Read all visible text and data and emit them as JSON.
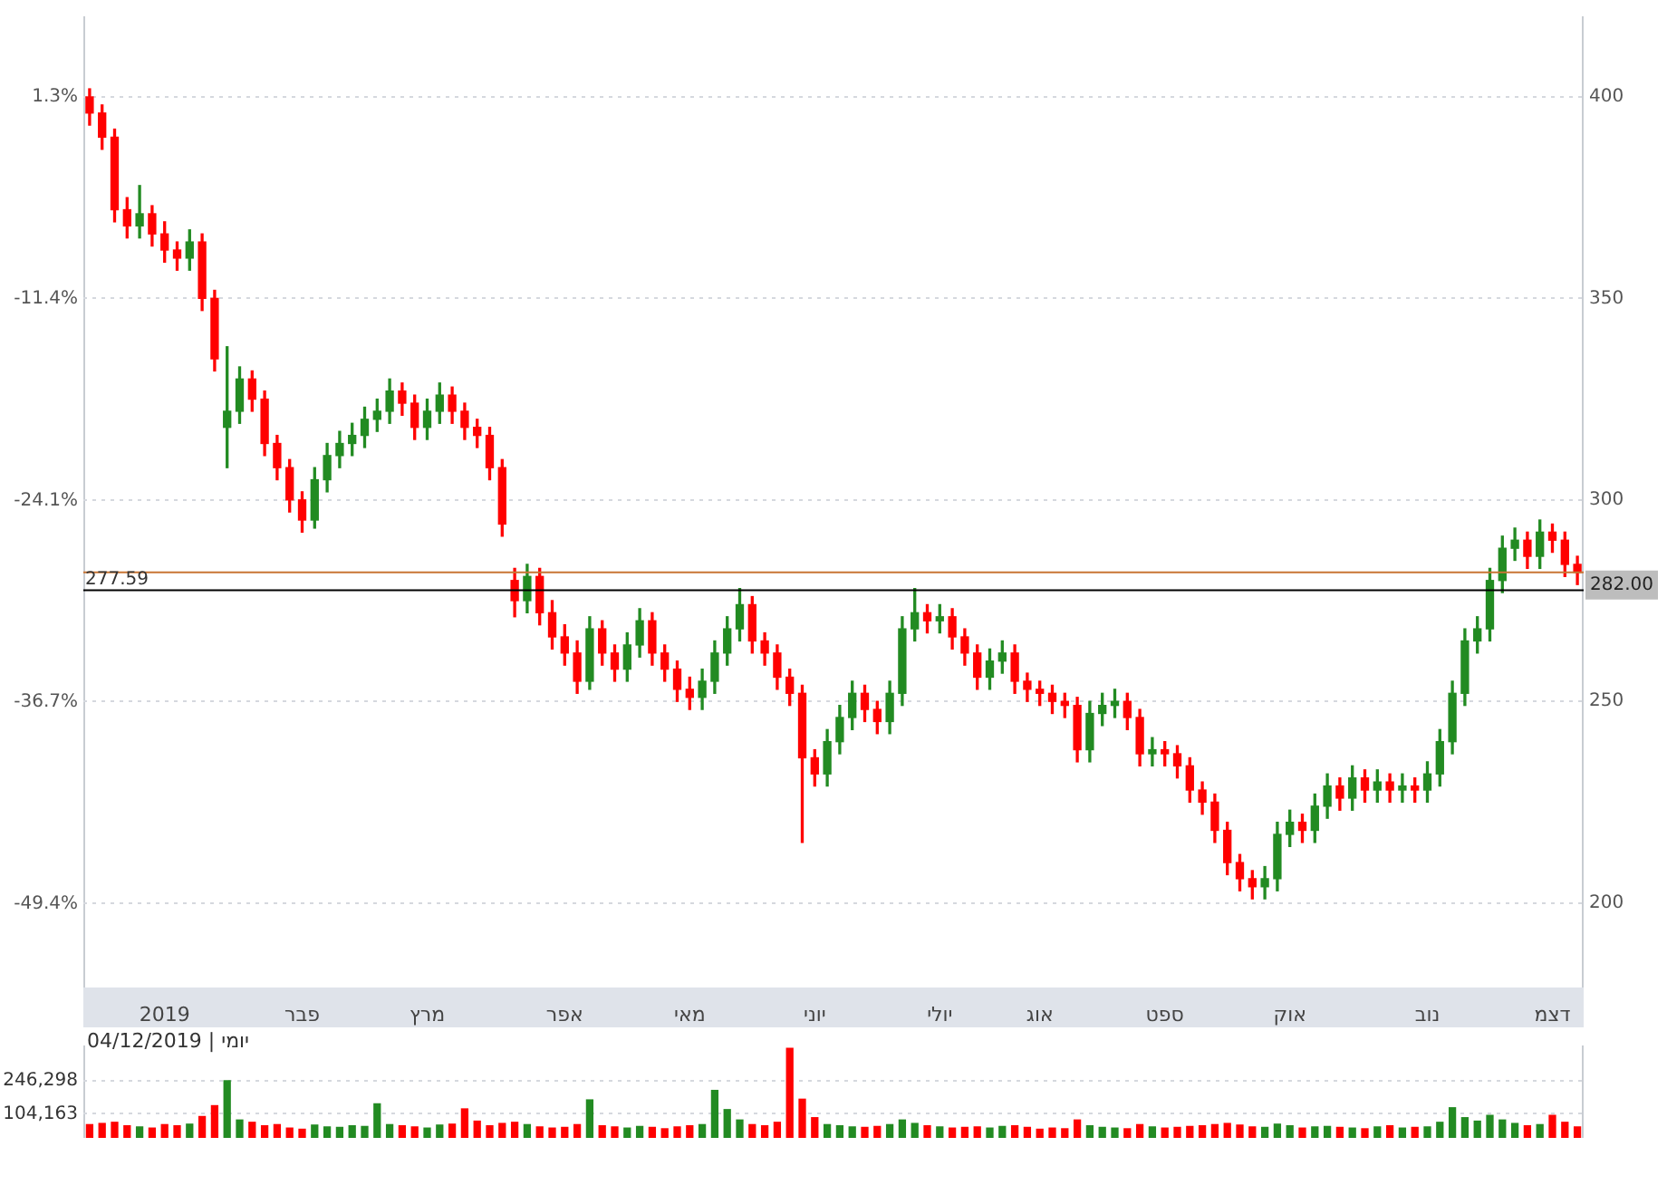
{
  "chart_data": [
    {
      "type": "candlestick",
      "categories": [
        null,
        null,
        null,
        null,
        null,
        null,
        "2019",
        null,
        null,
        null,
        null,
        null,
        null,
        null,
        null,
        null,
        null,
        "פבר",
        null,
        null,
        null,
        null,
        null,
        null,
        null,
        null,
        null,
        "מרץ",
        null,
        null,
        null,
        null,
        null,
        null,
        null,
        null,
        null,
        null,
        "אפר",
        null,
        null,
        null,
        null,
        null,
        null,
        null,
        null,
        null,
        "מאי",
        null,
        null,
        null,
        null,
        null,
        null,
        null,
        null,
        null,
        "יוני",
        null,
        null,
        null,
        null,
        null,
        null,
        null,
        null,
        null,
        "יולי",
        null,
        null,
        null,
        null,
        null,
        null,
        null,
        "אוג",
        null,
        null,
        null,
        null,
        null,
        null,
        null,
        null,
        null,
        "ספט",
        null,
        null,
        null,
        null,
        null,
        null,
        null,
        null,
        null,
        "אוק",
        null,
        null,
        null,
        null,
        null,
        null,
        null,
        null,
        null,
        null,
        "נוב",
        null,
        null,
        null,
        null,
        null,
        null,
        null,
        null,
        null,
        "דצמ",
        null,
        null
      ],
      "ohlc": [
        [
          400,
          402,
          393,
          396
        ],
        [
          396,
          398,
          387,
          390
        ],
        [
          390,
          392,
          369,
          372
        ],
        [
          372,
          375,
          365,
          368
        ],
        [
          368,
          378,
          365,
          371
        ],
        [
          371,
          373,
          363,
          366
        ],
        [
          366,
          369,
          359,
          362
        ],
        [
          362,
          364,
          357,
          360
        ],
        [
          360,
          367,
          357,
          364
        ],
        [
          364,
          366,
          347,
          350
        ],
        [
          350,
          352,
          332,
          335
        ],
        [
          318,
          338,
          308,
          322
        ],
        [
          322,
          333,
          319,
          330
        ],
        [
          330,
          332,
          322,
          325
        ],
        [
          325,
          327,
          311,
          314
        ],
        [
          314,
          316,
          305,
          308
        ],
        [
          308,
          310,
          297,
          300
        ],
        [
          300,
          302,
          292,
          295
        ],
        [
          295,
          308,
          293,
          305
        ],
        [
          305,
          314,
          302,
          311
        ],
        [
          311,
          317,
          308,
          314
        ],
        [
          314,
          319,
          311,
          316
        ],
        [
          316,
          323,
          313,
          320
        ],
        [
          320,
          325,
          317,
          322
        ],
        [
          322,
          330,
          319,
          327
        ],
        [
          327,
          329,
          321,
          324
        ],
        [
          324,
          326,
          315,
          318
        ],
        [
          318,
          325,
          315,
          322
        ],
        [
          322,
          329,
          319,
          326
        ],
        [
          326,
          328,
          319,
          322
        ],
        [
          322,
          324,
          315,
          318
        ],
        [
          318,
          320,
          313,
          316
        ],
        [
          316,
          318,
          305,
          308
        ],
        [
          308,
          310,
          291,
          294
        ],
        [
          280,
          283,
          271,
          275
        ],
        [
          275,
          284,
          272,
          281
        ],
        [
          281,
          283,
          269,
          272
        ],
        [
          272,
          275,
          263,
          266
        ],
        [
          266,
          269,
          259,
          262
        ],
        [
          262,
          265,
          252,
          255
        ],
        [
          255,
          271,
          253,
          268
        ],
        [
          268,
          270,
          259,
          262
        ],
        [
          262,
          264,
          255,
          258
        ],
        [
          258,
          267,
          255,
          264
        ],
        [
          264,
          273,
          261,
          270
        ],
        [
          270,
          272,
          259,
          262
        ],
        [
          262,
          264,
          255,
          258
        ],
        [
          258,
          260,
          250,
          253
        ],
        [
          253,
          256,
          248,
          251
        ],
        [
          251,
          258,
          248,
          255
        ],
        [
          255,
          265,
          252,
          262
        ],
        [
          262,
          271,
          259,
          268
        ],
        [
          268,
          278,
          265,
          274
        ],
        [
          274,
          276,
          262,
          265
        ],
        [
          265,
          267,
          259,
          262
        ],
        [
          262,
          264,
          253,
          256
        ],
        [
          256,
          258,
          249,
          252
        ],
        [
          252,
          254,
          215,
          236
        ],
        [
          236,
          238,
          229,
          232
        ],
        [
          232,
          243,
          229,
          240
        ],
        [
          240,
          249,
          237,
          246
        ],
        [
          246,
          255,
          243,
          252
        ],
        [
          252,
          254,
          245,
          248
        ],
        [
          248,
          250,
          242,
          245
        ],
        [
          245,
          255,
          242,
          252
        ],
        [
          252,
          271,
          249,
          268
        ],
        [
          268,
          278,
          265,
          272
        ],
        [
          272,
          274,
          267,
          270
        ],
        [
          270,
          274,
          267,
          271
        ],
        [
          271,
          273,
          263,
          266
        ],
        [
          266,
          268,
          259,
          262
        ],
        [
          262,
          264,
          253,
          256
        ],
        [
          256,
          263,
          253,
          260
        ],
        [
          260,
          265,
          257,
          262
        ],
        [
          262,
          264,
          252,
          255
        ],
        [
          255,
          257,
          250,
          253
        ],
        [
          253,
          255,
          249,
          252
        ],
        [
          252,
          254,
          247,
          250
        ],
        [
          250,
          252,
          246,
          249
        ],
        [
          249,
          251,
          235,
          238
        ],
        [
          238,
          250,
          235,
          247
        ],
        [
          247,
          252,
          244,
          249
        ],
        [
          249,
          253,
          246,
          250
        ],
        [
          250,
          252,
          243,
          246
        ],
        [
          246,
          248,
          234,
          237
        ],
        [
          237,
          241,
          234,
          238
        ],
        [
          238,
          240,
          234,
          237
        ],
        [
          237,
          239,
          231,
          234
        ],
        [
          234,
          236,
          225,
          228
        ],
        [
          228,
          230,
          222,
          225
        ],
        [
          225,
          227,
          215,
          218
        ],
        [
          218,
          220,
          207,
          210
        ],
        [
          210,
          212,
          203,
          206
        ],
        [
          206,
          208,
          201,
          204
        ],
        [
          204,
          209,
          201,
          206
        ],
        [
          206,
          220,
          203,
          217
        ],
        [
          217,
          223,
          214,
          220
        ],
        [
          220,
          222,
          215,
          218
        ],
        [
          218,
          227,
          215,
          224
        ],
        [
          224,
          232,
          221,
          229
        ],
        [
          229,
          231,
          223,
          226
        ],
        [
          226,
          234,
          223,
          231
        ],
        [
          231,
          233,
          225,
          228
        ],
        [
          228,
          233,
          225,
          230
        ],
        [
          230,
          232,
          225,
          228
        ],
        [
          228,
          232,
          225,
          229
        ],
        [
          229,
          231,
          225,
          228
        ],
        [
          228,
          235,
          225,
          232
        ],
        [
          232,
          243,
          229,
          240
        ],
        [
          240,
          255,
          237,
          252
        ],
        [
          252,
          268,
          249,
          265
        ],
        [
          265,
          271,
          262,
          268
        ],
        [
          268,
          283,
          265,
          280
        ],
        [
          280,
          291,
          277,
          288
        ],
        [
          288,
          293,
          285,
          290
        ],
        [
          290,
          292,
          283,
          286
        ],
        [
          286,
          295,
          283,
          292
        ],
        [
          292,
          294,
          287,
          290
        ],
        [
          290,
          292,
          281,
          284
        ],
        [
          284,
          286,
          279,
          282
        ]
      ],
      "colors": [
        "#ff0000",
        "#ff0000",
        "#ff0000",
        "#ff0000",
        "#228b22",
        "#ff0000",
        "#ff0000",
        "#ff0000",
        "#228b22",
        "#ff0000",
        "#ff0000",
        "#228b22",
        "#228b22",
        "#ff0000",
        "#ff0000",
        "#ff0000",
        "#ff0000",
        "#ff0000",
        "#228b22",
        "#228b22",
        "#228b22",
        "#228b22",
        "#228b22",
        "#228b22",
        "#228b22",
        "#ff0000",
        "#ff0000",
        "#228b22",
        "#228b22",
        "#ff0000",
        "#ff0000",
        "#ff0000",
        "#ff0000",
        "#ff0000",
        "#ff0000",
        "#228b22",
        "#ff0000",
        "#ff0000",
        "#ff0000",
        "#ff0000",
        "#228b22",
        "#ff0000",
        "#ff0000",
        "#228b22",
        "#228b22",
        "#ff0000",
        "#ff0000",
        "#ff0000",
        "#ff0000",
        "#228b22",
        "#228b22",
        "#228b22",
        "#228b22",
        "#ff0000",
        "#ff0000",
        "#ff0000",
        "#ff0000",
        "#ff0000",
        "#ff0000",
        "#228b22",
        "#228b22",
        "#228b22",
        "#ff0000",
        "#ff0000",
        "#228b22",
        "#228b22",
        "#228b22",
        "#ff0000",
        "#228b22",
        "#ff0000",
        "#ff0000",
        "#ff0000",
        "#228b22",
        "#228b22",
        "#ff0000",
        "#ff0000",
        "#ff0000",
        "#ff0000",
        "#ff0000",
        "#ff0000",
        "#228b22",
        "#228b22",
        "#228b22",
        "#ff0000",
        "#ff0000",
        "#228b22",
        "#ff0000",
        "#ff0000",
        "#ff0000",
        "#ff0000",
        "#ff0000",
        "#ff0000",
        "#ff0000",
        "#ff0000",
        "#228b22",
        "#228b22",
        "#228b22",
        "#ff0000",
        "#228b22",
        "#228b22",
        "#ff0000",
        "#228b22",
        "#ff0000",
        "#228b22",
        "#ff0000",
        "#228b22",
        "#ff0000",
        "#228b22",
        "#228b22",
        "#228b22",
        "#228b22",
        "#228b22",
        "#228b22",
        "#228b22",
        "#228b22",
        "#ff0000",
        "#228b22",
        "#ff0000",
        "#ff0000",
        "#ff0000"
      ],
      "ylim": [
        179,
        420
      ],
      "yticks": [
        200,
        250,
        300,
        350,
        400
      ],
      "y2lim": [
        -54.67,
        6.37
      ],
      "y2ticks": [
        {
          "value": -49.4,
          "label": "-49.4%"
        },
        {
          "value": -36.7,
          "label": "-36.7%"
        },
        {
          "value": -24.1,
          "label": "-24.1%"
        },
        {
          "value": -11.4,
          "label": "-11.4%"
        },
        {
          "value": 1.3,
          "label": "1.3%"
        }
      ],
      "ref_lines": [
        {
          "axis": "y",
          "value": 282,
          "label": "282.00",
          "color": "#c87533"
        },
        {
          "axis": "y",
          "value": 277.59,
          "label": "277.59",
          "color": "#000000"
        }
      ],
      "grid": "y",
      "annotations": [
        "יומי | 04/12/2019"
      ]
    },
    {
      "type": "bar",
      "categories": [
        null,
        null,
        null,
        null,
        null,
        null,
        null,
        null,
        null,
        null,
        null,
        null,
        null,
        null,
        null,
        null,
        null,
        null,
        null,
        null,
        null,
        null,
        null,
        null,
        null,
        null,
        null,
        null,
        null,
        null,
        null,
        null,
        null,
        null,
        null,
        null,
        null,
        null,
        null,
        null,
        null,
        null,
        null,
        null,
        null,
        null,
        null,
        null,
        null,
        null,
        null,
        null,
        null,
        null,
        null,
        null,
        null,
        null,
        null,
        null,
        null,
        null,
        null,
        null,
        null,
        null,
        null,
        null,
        null,
        null,
        null,
        null,
        null,
        null,
        null,
        null,
        null,
        null,
        null,
        null,
        null,
        null,
        null,
        null,
        null,
        null,
        null,
        null,
        null,
        null,
        null,
        null,
        null,
        null,
        null,
        null,
        null,
        null,
        null,
        null,
        null,
        null,
        null,
        null,
        null,
        null,
        null,
        null,
        null,
        null,
        null,
        null,
        null,
        null,
        null,
        null,
        null,
        null,
        null,
        null
      ],
      "values": [
        60000,
        65000,
        70000,
        55000,
        50000,
        45000,
        60000,
        55000,
        62000,
        95000,
        142000,
        250000,
        80000,
        70000,
        55000,
        60000,
        45000,
        40000,
        58000,
        50000,
        48000,
        55000,
        52000,
        150000,
        60000,
        55000,
        50000,
        45000,
        58000,
        62000,
        128000,
        75000,
        55000,
        65000,
        70000,
        60000,
        50000,
        45000,
        48000,
        60000,
        167000,
        55000,
        50000,
        45000,
        52000,
        48000,
        42000,
        50000,
        55000,
        60000,
        208000,
        125000,
        80000,
        60000,
        55000,
        70000,
        390000,
        170000,
        90000,
        60000,
        55000,
        50000,
        48000,
        52000,
        60000,
        80000,
        65000,
        55000,
        50000,
        45000,
        48000,
        50000,
        45000,
        52000,
        55000,
        48000,
        40000,
        45000,
        42000,
        80000,
        55000,
        48000,
        45000,
        42000,
        60000,
        50000,
        45000,
        48000,
        52000,
        55000,
        60000,
        65000,
        58000,
        50000,
        48000,
        62000,
        55000,
        45000,
        50000,
        52000,
        48000,
        45000,
        42000,
        50000,
        55000,
        45000,
        48000,
        50000,
        70000,
        133000,
        90000,
        75000,
        100000,
        80000,
        65000,
        55000,
        60000,
        100000,
        70000,
        50000
      ],
      "colors": [
        "#ff0000",
        "#ff0000",
        "#ff0000",
        "#ff0000",
        "#228b22",
        "#ff0000",
        "#ff0000",
        "#ff0000",
        "#228b22",
        "#ff0000",
        "#ff0000",
        "#228b22",
        "#228b22",
        "#ff0000",
        "#ff0000",
        "#ff0000",
        "#ff0000",
        "#ff0000",
        "#228b22",
        "#228b22",
        "#228b22",
        "#228b22",
        "#228b22",
        "#228b22",
        "#228b22",
        "#ff0000",
        "#ff0000",
        "#228b22",
        "#228b22",
        "#ff0000",
        "#ff0000",
        "#ff0000",
        "#ff0000",
        "#ff0000",
        "#ff0000",
        "#228b22",
        "#ff0000",
        "#ff0000",
        "#ff0000",
        "#ff0000",
        "#228b22",
        "#ff0000",
        "#ff0000",
        "#228b22",
        "#228b22",
        "#ff0000",
        "#ff0000",
        "#ff0000",
        "#ff0000",
        "#228b22",
        "#228b22",
        "#228b22",
        "#228b22",
        "#ff0000",
        "#ff0000",
        "#ff0000",
        "#ff0000",
        "#ff0000",
        "#ff0000",
        "#228b22",
        "#228b22",
        "#228b22",
        "#ff0000",
        "#ff0000",
        "#228b22",
        "#228b22",
        "#228b22",
        "#ff0000",
        "#228b22",
        "#ff0000",
        "#ff0000",
        "#ff0000",
        "#228b22",
        "#228b22",
        "#ff0000",
        "#ff0000",
        "#ff0000",
        "#ff0000",
        "#ff0000",
        "#ff0000",
        "#228b22",
        "#228b22",
        "#228b22",
        "#ff0000",
        "#ff0000",
        "#228b22",
        "#ff0000",
        "#ff0000",
        "#ff0000",
        "#ff0000",
        "#ff0000",
        "#ff0000",
        "#ff0000",
        "#ff0000",
        "#228b22",
        "#228b22",
        "#228b22",
        "#ff0000",
        "#228b22",
        "#228b22",
        "#ff0000",
        "#228b22",
        "#ff0000",
        "#228b22",
        "#ff0000",
        "#228b22",
        "#ff0000",
        "#228b22",
        "#228b22",
        "#228b22",
        "#228b22",
        "#228b22",
        "#228b22",
        "#228b22",
        "#228b22",
        "#ff0000",
        "#228b22",
        "#ff0000",
        "#ff0000",
        "#ff0000"
      ],
      "ylim": [
        0,
        400000
      ],
      "yticks": [
        {
          "value": 104163,
          "label": "104,163"
        },
        {
          "value": 246298,
          "label": "246,298"
        }
      ],
      "grid": "y",
      "tick_labels": "y"
    }
  ]
}
